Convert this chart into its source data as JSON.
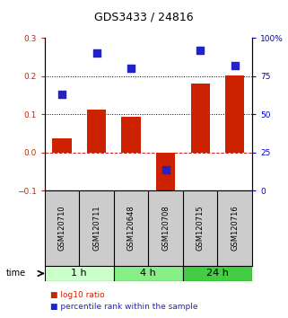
{
  "title": "GDS3433 / 24816",
  "samples": [
    "GSM120710",
    "GSM120711",
    "GSM120648",
    "GSM120708",
    "GSM120715",
    "GSM120716"
  ],
  "log10_ratio": [
    0.037,
    0.112,
    0.095,
    -0.105,
    0.182,
    0.202
  ],
  "percentile_rank": [
    63,
    90,
    80,
    14,
    92,
    82
  ],
  "bar_color": "#cc2200",
  "dot_color": "#2222cc",
  "ylim_left": [
    -0.1,
    0.3
  ],
  "ylim_right": [
    0,
    100
  ],
  "yticks_left": [
    -0.1,
    0.0,
    0.1,
    0.2,
    0.3
  ],
  "yticks_right": [
    0,
    25,
    50,
    75,
    100
  ],
  "groups": [
    {
      "label": "1 h",
      "samples": [
        0,
        1
      ],
      "color": "#ccffcc"
    },
    {
      "label": "4 h",
      "samples": [
        2,
        3
      ],
      "color": "#88ee88"
    },
    {
      "label": "24 h",
      "samples": [
        4,
        5
      ],
      "color": "#44cc44"
    }
  ],
  "legend_items": [
    {
      "color": "#cc2200",
      "label": "log10 ratio"
    },
    {
      "color": "#2222cc",
      "label": "percentile rank within the sample"
    }
  ],
  "time_label": "time",
  "bar_width": 0.55,
  "dot_size": 30,
  "background_color": "#ffffff",
  "plot_bg_color": "#ffffff",
  "sample_label_fontsize": 6,
  "title_fontsize": 9,
  "tick_fontsize": 6.5,
  "group_label_fontsize": 8,
  "legend_fontsize": 6.5,
  "time_fontsize": 7
}
